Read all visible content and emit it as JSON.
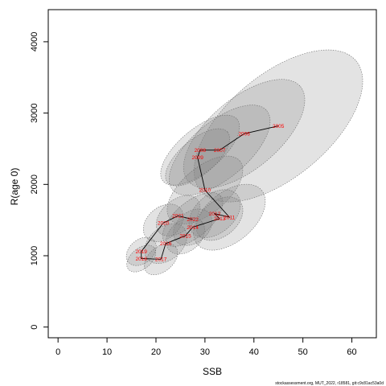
{
  "chart_data": {
    "type": "scatter",
    "xlabel": "SSB",
    "ylabel": "R(age 0)",
    "xlim": [
      -2,
      65
    ],
    "ylim": [
      -150,
      4450
    ],
    "x_ticks": [
      0,
      10,
      20,
      30,
      40,
      50,
      60
    ],
    "y_ticks": [
      0,
      1000,
      2000,
      3000,
      4000
    ],
    "grid": false,
    "footer": "stockassessment.org, MUT_2022, r18581, git:c9c81ac53a0d",
    "points": [
      {
        "year": "2005",
        "x": 45.0,
        "y": 2820,
        "sx": 14.5,
        "sy": 1450
      },
      {
        "year": "2006",
        "x": 38.0,
        "y": 2710,
        "sx": 10.0,
        "sy": 1050
      },
      {
        "year": "2007",
        "x": 33.0,
        "y": 2480,
        "sx": 8.0,
        "sy": 880
      },
      {
        "year": "2008",
        "x": 29.0,
        "y": 2480,
        "sx": 6.0,
        "sy": 690
      },
      {
        "year": "2009",
        "x": 28.5,
        "y": 2380,
        "sx": 5.0,
        "sy": 560
      },
      {
        "year": "2010",
        "x": 30.0,
        "y": 1920,
        "sx": 6.5,
        "sy": 650
      },
      {
        "year": "2011",
        "x": 35.0,
        "y": 1540,
        "sx": 7.0,
        "sy": 600
      },
      {
        "year": "2012",
        "x": 32.0,
        "y": 1590,
        "sx": 5.5,
        "sy": 420
      },
      {
        "year": "2013",
        "x": 33.0,
        "y": 1520,
        "sx": 5.0,
        "sy": 380
      },
      {
        "year": "2014",
        "x": 27.5,
        "y": 1400,
        "sx": 4.5,
        "sy": 300
      },
      {
        "year": "2015",
        "x": 26.0,
        "y": 1280,
        "sx": 4.5,
        "sy": 300
      },
      {
        "year": "2016",
        "x": 22.0,
        "y": 1170,
        "sx": 5.0,
        "sy": 320
      },
      {
        "year": "2017",
        "x": 21.0,
        "y": 950,
        "sx": 4.0,
        "sy": 240
      },
      {
        "year": "2018",
        "x": 17.0,
        "y": 960,
        "sx": 3.5,
        "sy": 200
      },
      {
        "year": "2019",
        "x": 17.0,
        "y": 1060,
        "sx": 3.5,
        "sy": 230
      },
      {
        "year": "2020",
        "x": 21.5,
        "y": 1460,
        "sx": 4.5,
        "sy": 320
      },
      {
        "year": "2021",
        "x": 24.5,
        "y": 1560,
        "sx": 4.5,
        "sy": 360
      },
      {
        "year": "2022",
        "x": 27.5,
        "y": 1510,
        "sx": 5.0,
        "sy": 520
      }
    ],
    "colors": {
      "ellipse_fill": "#808080",
      "ellipse_opacity": 0.22,
      "ellipse_stroke": "#6e6e6e",
      "line": "#000000",
      "labels": "#ff0000"
    }
  }
}
